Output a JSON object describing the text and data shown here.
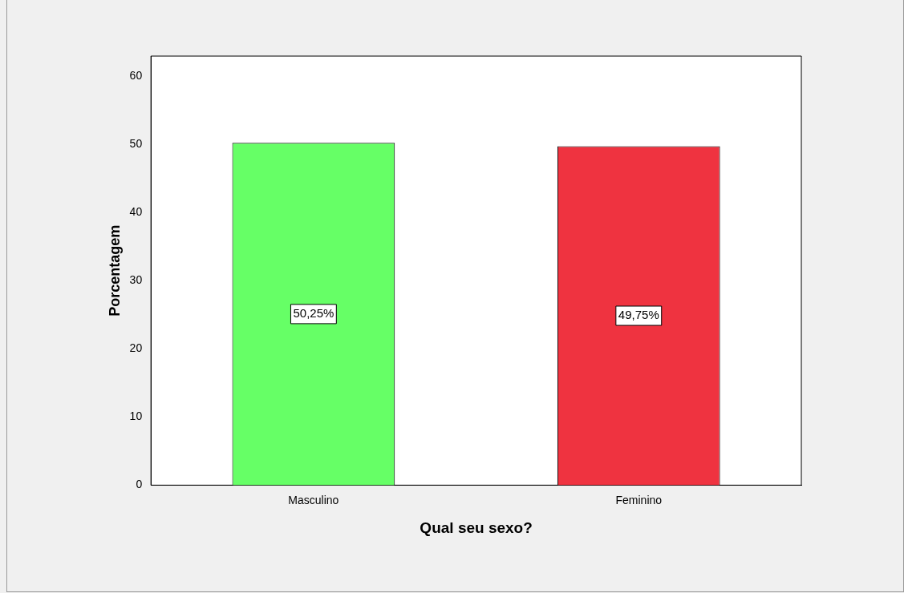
{
  "chart_data": {
    "type": "bar",
    "xlabel": "Qual seu sexo?",
    "ylabel": "Porcentagem",
    "categories": [
      "Masculino",
      "Feminino"
    ],
    "values": [
      50.25,
      49.75
    ],
    "colors": [
      "#66ff66",
      "#ef3340"
    ],
    "value_labels": [
      "50,25%",
      "49,75%"
    ],
    "ylim": [
      0,
      63
    ],
    "yticks": [
      0,
      10,
      20,
      30,
      40,
      50,
      60
    ],
    "grid": false,
    "legend": false
  }
}
